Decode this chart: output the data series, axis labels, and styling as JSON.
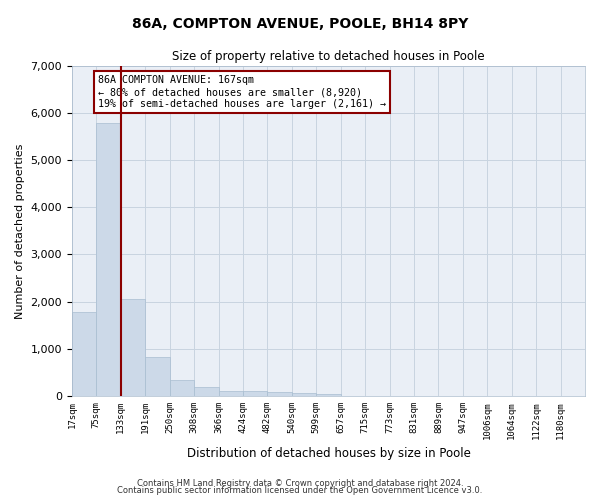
{
  "title": "86A, COMPTON AVENUE, POOLE, BH14 8PY",
  "subtitle": "Size of property relative to detached houses in Poole",
  "xlabel": "Distribution of detached houses by size in Poole",
  "ylabel": "Number of detached properties",
  "bin_labels": [
    "17sqm",
    "75sqm",
    "133sqm",
    "191sqm",
    "250sqm",
    "308sqm",
    "366sqm",
    "424sqm",
    "482sqm",
    "540sqm",
    "599sqm",
    "657sqm",
    "715sqm",
    "773sqm",
    "831sqm",
    "889sqm",
    "947sqm",
    "1006sqm",
    "1064sqm",
    "1122sqm",
    "1180sqm"
  ],
  "bar_heights": [
    1780,
    5780,
    2060,
    820,
    340,
    185,
    120,
    110,
    90,
    70,
    55,
    0,
    0,
    0,
    0,
    0,
    0,
    0,
    0,
    0
  ],
  "bar_color": "#ccd9e8",
  "bar_edgecolor": "#a8bdd0",
  "vline_color": "#8b0000",
  "vline_bar_index": 2,
  "annotation_text": "86A COMPTON AVENUE: 167sqm\n← 80% of detached houses are smaller (8,920)\n19% of semi-detached houses are larger (2,161) →",
  "annotation_box_edgecolor": "#8b0000",
  "ylim": [
    0,
    7000
  ],
  "yticks": [
    0,
    1000,
    2000,
    3000,
    4000,
    5000,
    6000,
    7000
  ],
  "grid_color": "#c8d4e0",
  "bg_color": "#eaeff6",
  "footer_line1": "Contains HM Land Registry data © Crown copyright and database right 2024.",
  "footer_line2": "Contains public sector information licensed under the Open Government Licence v3.0."
}
